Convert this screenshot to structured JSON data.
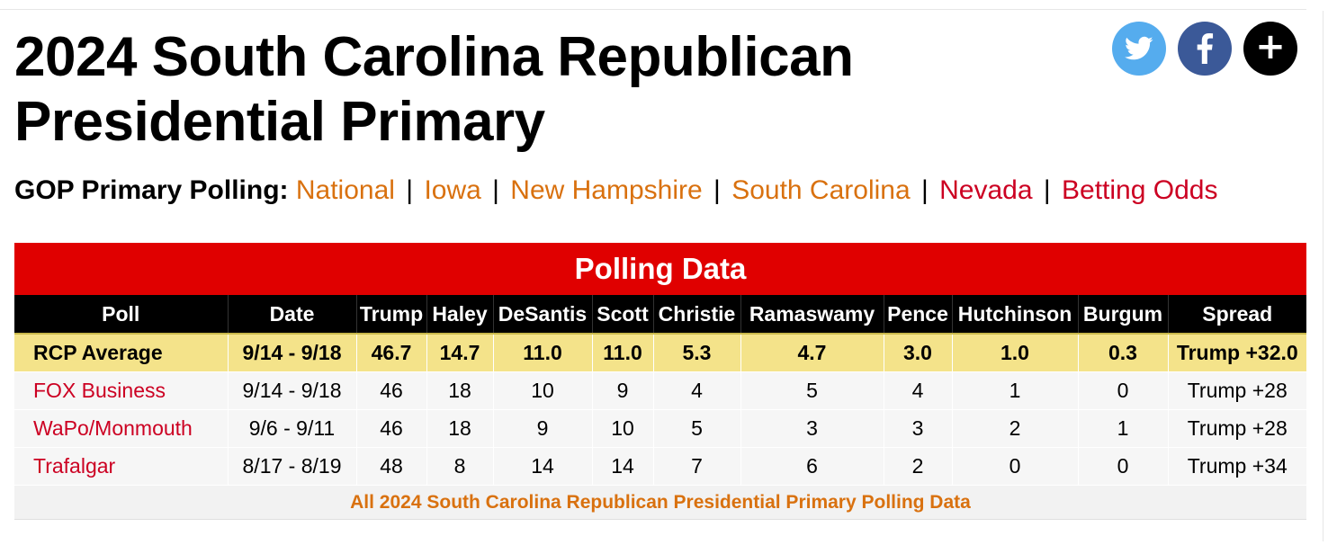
{
  "page": {
    "title": "2024 South Carolina Republican Presidential Primary"
  },
  "social": [
    {
      "name": "twitter",
      "icon": "twitter-icon",
      "color": "#55acee"
    },
    {
      "name": "facebook",
      "icon": "facebook-icon",
      "color": "#3b5998"
    },
    {
      "name": "more",
      "icon": "plus-icon",
      "label": "+",
      "color": "#000000"
    }
  ],
  "gop_nav": {
    "lead": "GOP Primary Polling:",
    "links": [
      {
        "label": "National",
        "color": "#d9710f"
      },
      {
        "label": "Iowa",
        "color": "#d9710f"
      },
      {
        "label": "New Hampshire",
        "color": "#d9710f"
      },
      {
        "label": "South Carolina",
        "color": "#d9710f"
      },
      {
        "label": "Nevada",
        "color": "#cc0022"
      },
      {
        "label": "Betting Odds",
        "color": "#cc0022"
      }
    ],
    "separator": "|"
  },
  "table": {
    "caption": "Polling Data",
    "headers": [
      "Poll",
      "Date",
      "Trump",
      "Haley",
      "DeSantis",
      "Scott",
      "Christie",
      "Ramaswamy",
      "Pence",
      "Hutchinson",
      "Burgum",
      "Spread"
    ],
    "average": [
      "RCP Average",
      "9/14 - 9/18",
      "46.7",
      "14.7",
      "11.0",
      "11.0",
      "5.3",
      "4.7",
      "3.0",
      "1.0",
      "0.3",
      "Trump +32.0"
    ],
    "rows": [
      [
        "FOX Business",
        "9/14 - 9/18",
        "46",
        "18",
        "10",
        "9",
        "4",
        "5",
        "4",
        "1",
        "0",
        "Trump +28"
      ],
      [
        "WaPo/Monmouth",
        "9/6 - 9/11",
        "46",
        "18",
        "9",
        "10",
        "5",
        "3",
        "3",
        "2",
        "1",
        "Trump +28"
      ],
      [
        "Trafalgar",
        "8/17 - 8/19",
        "48",
        "8",
        "14",
        "14",
        "7",
        "6",
        "2",
        "0",
        "0",
        "Trump +34"
      ]
    ],
    "footer_link": "All 2024 South Carolina Republican Presidential Primary Polling Data",
    "colors": {
      "caption_bg": "#e00000",
      "header_bg": "#000000",
      "average_bg": "#f4e38a",
      "row_bg": "#f6f6f6",
      "poll_link": "#cc0022",
      "footer_link": "#d9710f"
    }
  }
}
